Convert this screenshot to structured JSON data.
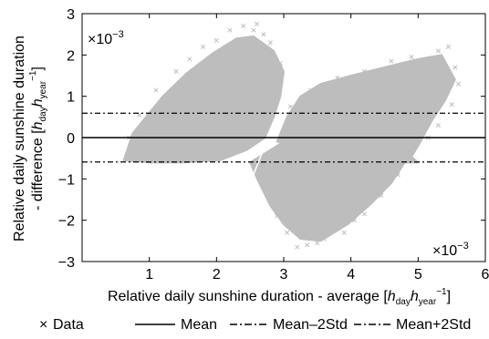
{
  "chart_data": {
    "type": "scatter",
    "xlabel": {
      "main": "Relative daily sunshine duration - average [",
      "h": "h",
      "h_sub": "day",
      "h2": "h",
      "h2_sub": "year",
      "h2_sup": "−1",
      "close": "]"
    },
    "ylabel": {
      "line1": "Relative daily sunshine duration",
      "line2": "- difference [",
      "h": "h",
      "h_sub": "day",
      "h2": "h",
      "h2_sub": "year",
      "h2_sup": "−1",
      "close": "]"
    },
    "x_multiplier": {
      "base": "×10",
      "exp": "−3"
    },
    "y_multiplier": {
      "base": "×10",
      "exp": "−3"
    },
    "xlim": [
      0.0,
      6.0
    ],
    "ylim": [
      -3.0,
      3.0
    ],
    "x_ticks": [
      1,
      2,
      3,
      4,
      5,
      6
    ],
    "x_tick_labels": [
      "1",
      "2",
      "3",
      "4",
      "5",
      "6"
    ],
    "y_ticks": [
      -3,
      -2,
      -1,
      0,
      1,
      2,
      3
    ],
    "y_tick_labels": [
      "−3",
      "−2",
      "−1",
      "0",
      "1",
      "2",
      "3"
    ],
    "grid": false,
    "legend_position": "bottom",
    "series": [
      {
        "name": "Data",
        "kind": "scatter",
        "marker": "×",
        "color": "#bdbdbd",
        "cloud_polygons": [
          [
            [
              0.62,
              -0.55
            ],
            [
              0.75,
              0.1
            ],
            [
              0.95,
              0.5
            ],
            [
              1.2,
              1.0
            ],
            [
              1.55,
              1.55
            ],
            [
              1.95,
              2.05
            ],
            [
              2.3,
              2.4
            ],
            [
              2.55,
              2.45
            ],
            [
              2.85,
              2.1
            ],
            [
              3.0,
              1.6
            ],
            [
              2.95,
              1.0
            ],
            [
              2.85,
              0.5
            ],
            [
              2.72,
              0.0
            ],
            [
              2.45,
              -0.3
            ],
            [
              2.05,
              -0.55
            ],
            [
              1.5,
              -0.6
            ],
            [
              1.0,
              -0.6
            ]
          ],
          [
            [
              2.5,
              -0.6
            ],
            [
              2.62,
              -1.05
            ],
            [
              2.8,
              -1.65
            ],
            [
              3.0,
              -2.1
            ],
            [
              3.25,
              -2.45
            ],
            [
              3.55,
              -2.5
            ],
            [
              3.95,
              -2.1
            ],
            [
              4.3,
              -1.6
            ],
            [
              4.6,
              -1.1
            ],
            [
              4.8,
              -0.6
            ],
            [
              5.0,
              -0.6
            ],
            [
              4.75,
              -0.25
            ],
            [
              4.2,
              0.05
            ],
            [
              3.6,
              0.1
            ],
            [
              3.0,
              -0.1
            ]
          ],
          [
            [
              2.9,
              -0.1
            ],
            [
              3.05,
              0.5
            ],
            [
              3.25,
              1.0
            ],
            [
              3.55,
              1.3
            ],
            [
              4.0,
              1.5
            ],
            [
              4.5,
              1.7
            ],
            [
              5.0,
              1.9
            ],
            [
              5.35,
              2.0
            ],
            [
              5.55,
              1.4
            ],
            [
              5.4,
              0.9
            ],
            [
              5.2,
              0.4
            ],
            [
              5.0,
              -0.2
            ],
            [
              4.85,
              -0.6
            ],
            [
              4.4,
              -0.4
            ],
            [
              3.8,
              -0.25
            ],
            [
              3.3,
              -0.2
            ]
          ]
        ],
        "outliers": [
          [
            2.4,
            2.7
          ],
          [
            2.55,
            2.6
          ],
          [
            2.6,
            2.75
          ],
          [
            2.2,
            2.6
          ],
          [
            2.0,
            2.35
          ],
          [
            1.8,
            2.2
          ],
          [
            1.6,
            1.9
          ],
          [
            1.4,
            1.6
          ],
          [
            1.1,
            1.15
          ],
          [
            0.85,
            0.55
          ],
          [
            0.7,
            0.0
          ],
          [
            3.2,
            -2.65
          ],
          [
            3.35,
            -2.6
          ],
          [
            3.5,
            -2.55
          ],
          [
            3.6,
            -2.45
          ],
          [
            3.05,
            -2.3
          ],
          [
            2.9,
            -1.9
          ],
          [
            3.9,
            -2.3
          ],
          [
            4.05,
            -2.0
          ],
          [
            4.2,
            -1.85
          ],
          [
            4.45,
            -1.4
          ],
          [
            4.7,
            -0.9
          ],
          [
            5.3,
            2.1
          ],
          [
            5.45,
            2.2
          ],
          [
            5.55,
            1.7
          ],
          [
            5.6,
            1.3
          ],
          [
            5.5,
            0.8
          ],
          [
            5.3,
            0.3
          ],
          [
            5.15,
            0.0
          ],
          [
            4.9,
            1.95
          ],
          [
            4.6,
            1.85
          ],
          [
            4.2,
            1.6
          ],
          [
            3.8,
            1.45
          ],
          [
            3.4,
            1.15
          ],
          [
            3.1,
            0.75
          ],
          [
            2.95,
            1.8
          ],
          [
            2.8,
            2.3
          ],
          [
            2.7,
            2.5
          ]
        ],
        "gap_line": [
          [
            2.55,
            -0.9
          ],
          [
            2.85,
            0.35
          ]
        ]
      },
      {
        "name": "Mean",
        "kind": "hline",
        "y": 0.0,
        "dash": "solid",
        "color": "#000000"
      },
      {
        "name": "Mean−2Std",
        "kind": "hline",
        "y": -0.59,
        "dash": "dashdot",
        "color": "#000000"
      },
      {
        "name": "Mean+2Std",
        "kind": "hline",
        "y": 0.59,
        "dash": "dashdot",
        "color": "#000000"
      }
    ],
    "legend": [
      {
        "name": "Data",
        "symbol": "×"
      },
      {
        "name": "Mean",
        "symbol": "solid"
      },
      {
        "name": "Mean–2Std",
        "symbol": "dashdot"
      },
      {
        "name": "Mean+2Std",
        "symbol": "dashdot"
      }
    ]
  }
}
